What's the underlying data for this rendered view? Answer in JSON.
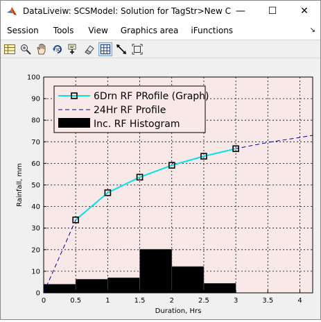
{
  "window": {
    "title": "DataLiveiw: SCSModel: Solution for TagStr>New Catc...",
    "minimize": "—",
    "maximize": "☐",
    "close": "✕"
  },
  "menu": {
    "items": [
      "Session",
      "Tools",
      "View",
      "Graphics area",
      "iFunctions"
    ],
    "overflow_arrow": "↘"
  },
  "toolbar": {
    "icons": [
      "table-icon",
      "zoom-icon",
      "pan-hand-icon",
      "rotate-3d-icon",
      "data-cursor-icon",
      "eraser-icon",
      "grid-icon",
      "arrows-icon",
      "fit-frame-icon"
    ],
    "active_index": 6
  },
  "colors": {
    "plot_bg": "#f8e8e8",
    "graph_line": "#00e5e5",
    "dashed_line": "#00008b",
    "bars": "#000000"
  },
  "chart_data": {
    "type": "line",
    "xlabel": "Duration, Hrs",
    "ylabel": "Rainfall, mm",
    "xlim": [
      0,
      4.2
    ],
    "ylim": [
      0,
      100
    ],
    "xticks": [
      "0",
      "0.5",
      "1",
      "1.5",
      "2",
      "2.5",
      "3",
      "3.5",
      "4"
    ],
    "yticks": [
      "0",
      "10",
      "20",
      "30",
      "40",
      "50",
      "60",
      "70",
      "80",
      "90",
      "100"
    ],
    "grid": true,
    "legend_position": "top-left",
    "series": [
      {
        "name": "6Drn RF PRofile (Graph)",
        "style": "solid-with-square-markers",
        "x": [
          0,
          0.5,
          1,
          1.5,
          2,
          2.5,
          3
        ],
        "y": [
          0,
          33.8,
          46.4,
          53.6,
          59.1,
          63.3,
          66.8
        ]
      },
      {
        "name": "24Hr RF Profile",
        "style": "dashed",
        "x": [
          0,
          0.5,
          1,
          1.5,
          2,
          2.5,
          3,
          3.5,
          4,
          4.2
        ],
        "y": [
          0,
          33.8,
          46.4,
          53.6,
          59.1,
          63.3,
          66.8,
          69.7,
          72.0,
          73.0
        ]
      },
      {
        "name": "Inc. RF Histogram",
        "style": "bars",
        "x": [
          0,
          0.5,
          1,
          1.5,
          2,
          2.5
        ],
        "widths": [
          0.5,
          0.5,
          0.5,
          0.5,
          0.5,
          0.5
        ],
        "y": [
          4.0,
          6.3,
          7.0,
          20.2,
          12.2,
          4.4
        ]
      }
    ]
  }
}
